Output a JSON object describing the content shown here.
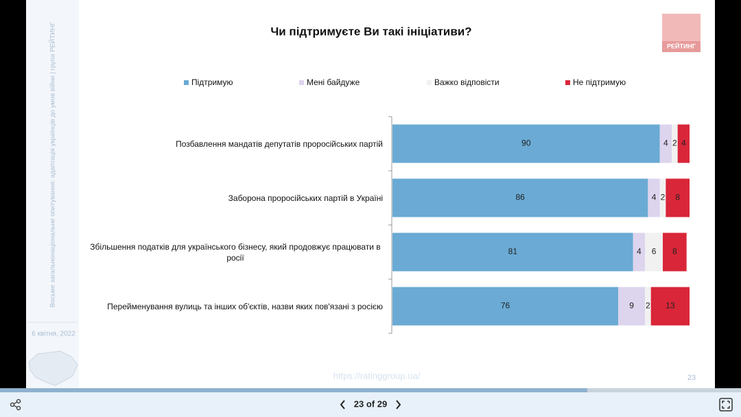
{
  "sidebar": {
    "caption": "Восьме загальнонаціональне опитування: адаптація українців до умов війни | група РЕЙТИНГ",
    "date": "6 квітня, 2022"
  },
  "logo": "РЕЙТИНГ",
  "chart_data": {
    "type": "bar",
    "orientation": "horizontal",
    "stacked": true,
    "title": "Чи підтримуєте Ви такі ініціативи?",
    "categories": [
      "Позбавлення мандатів депутатів проросійських партій",
      "Заборона проросійських партій в Україні",
      "Збільшення податків для українського бізнесу, який продовжує працювати в росії",
      "Перейменування вулиць та інших об'єктів, назви яких пов'язані з росією"
    ],
    "series": [
      {
        "name": "Підтримую",
        "color": "#6aaad4",
        "values": [
          90,
          86,
          81,
          76
        ]
      },
      {
        "name": "Мені байдуже",
        "color": "#ddd4ee",
        "values": [
          4,
          4,
          4,
          9
        ]
      },
      {
        "name": "Важко відповісти",
        "color": "#f1f1f1",
        "values": [
          2,
          2,
          6,
          2
        ]
      },
      {
        "name": "Не підтримую",
        "color": "#d92638",
        "values": [
          4,
          8,
          8,
          13
        ]
      }
    ],
    "xlim": [
      0,
      100
    ],
    "legend": "top"
  },
  "footer": {
    "url": "https://ratinggroup.ua/",
    "page": "23"
  },
  "viewer": {
    "page_indicator": "23 of 29"
  }
}
